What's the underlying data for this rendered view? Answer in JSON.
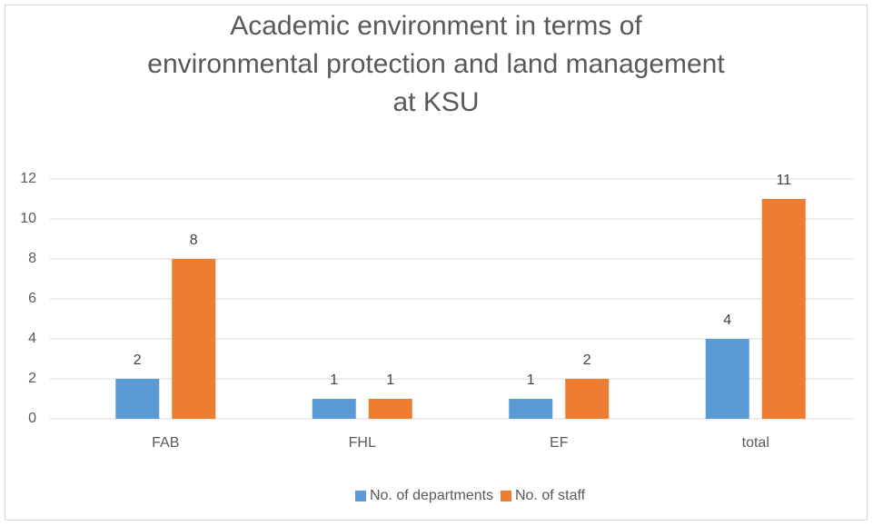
{
  "chart_data": {
    "type": "bar",
    "title": "Academic environment in terms of environmental protection and land management at KSU",
    "categories": [
      "FAB",
      "FHL",
      "EF",
      "total"
    ],
    "series": [
      {
        "name": "No. of departments",
        "color": "#5b9bd5",
        "values": [
          2,
          1,
          1,
          4
        ]
      },
      {
        "name": "No. of staff",
        "color": "#ed7d31",
        "values": [
          8,
          1,
          2,
          11
        ]
      }
    ],
    "ylim": [
      0,
      12
    ],
    "yticks": [
      0,
      2,
      4,
      6,
      8,
      10,
      12
    ],
    "grid": true,
    "legend": "bottom"
  }
}
